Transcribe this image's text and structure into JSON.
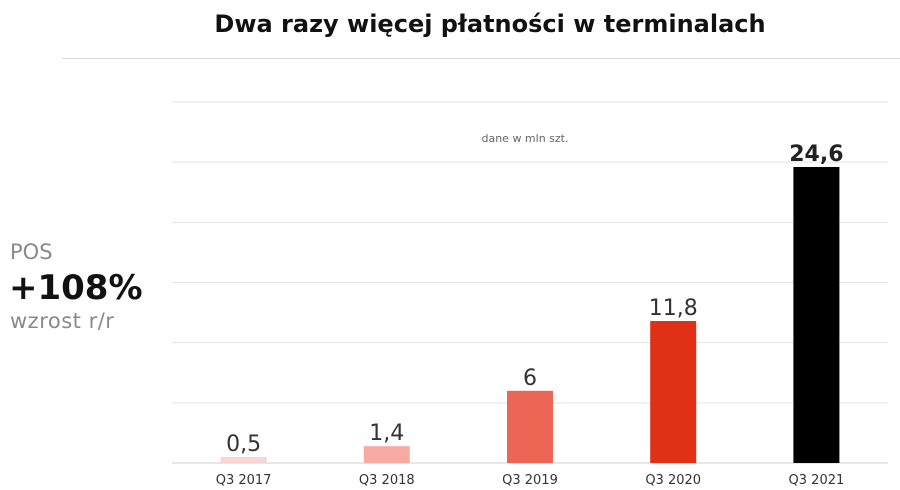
{
  "chart_data": {
    "type": "bar",
    "title": "Dwa razy więcej płatności w terminalach",
    "unit_note": "dane w mln szt.",
    "categories": [
      "Q3 2017",
      "Q3 2018",
      "Q3 2019",
      "Q3 2020",
      "Q3 2021"
    ],
    "values": [
      0.5,
      1.4,
      6,
      11.8,
      24.6
    ],
    "value_labels": [
      "0,5",
      "1,4",
      "6",
      "11,8",
      "24,6"
    ],
    "bar_colors": [
      "#f9d4d2",
      "#f6aaa2",
      "#ec6555",
      "#e03016",
      "#000000"
    ],
    "ylim": [
      0,
      30
    ],
    "grid": true,
    "legend": "none"
  },
  "kpi": {
    "label": "POS",
    "value": "+108%",
    "caption": "wzrost r/r"
  }
}
